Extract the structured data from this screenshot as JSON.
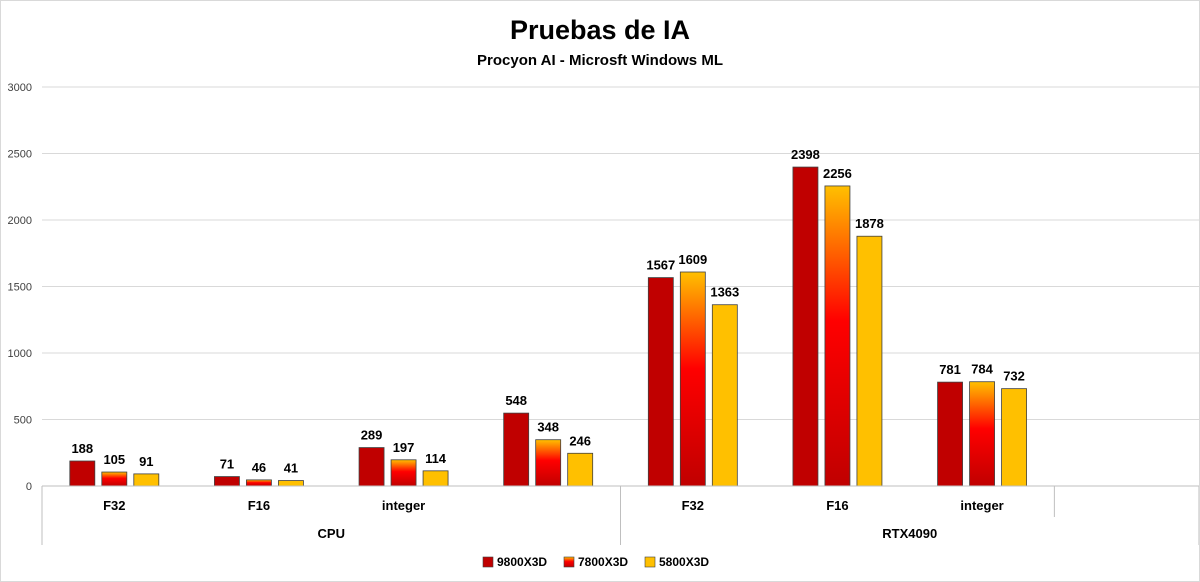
{
  "colors": {
    "series_9800": "#c00000",
    "series_7800_top": "#ffc000",
    "series_7800_mid": "#ff0000",
    "series_7800_bottom": "#c00000",
    "series_5800": "#ffc000",
    "bar_border": "#404040",
    "grid": "#d9d9d9",
    "axis": "#bfbfbf"
  },
  "chart_data": {
    "type": "bar",
    "title": "Pruebas de IA",
    "subtitle": "Procyon AI - Microsft Windows ML",
    "ylim": [
      0,
      3000
    ],
    "yticks": [
      0,
      500,
      1000,
      1500,
      2000,
      2500,
      3000
    ],
    "grid": true,
    "legend_position": "bottom",
    "categories": [
      "F32",
      "F16",
      "integer",
      "",
      "F32",
      "F16",
      "integer",
      ""
    ],
    "groups": [
      {
        "label": "CPU",
        "span": [
          0,
          3
        ]
      },
      {
        "label": "RTX4090",
        "span": [
          4,
          7
        ]
      }
    ],
    "series": [
      {
        "name": "9800X3D",
        "values": [
          188,
          71,
          289,
          548,
          1567,
          2398,
          781,
          null
        ]
      },
      {
        "name": "7800X3D",
        "values": [
          105,
          46,
          197,
          348,
          1609,
          2256,
          784,
          null
        ]
      },
      {
        "name": "5800X3D",
        "values": [
          91,
          41,
          114,
          246,
          1363,
          1878,
          732,
          null
        ]
      }
    ]
  }
}
